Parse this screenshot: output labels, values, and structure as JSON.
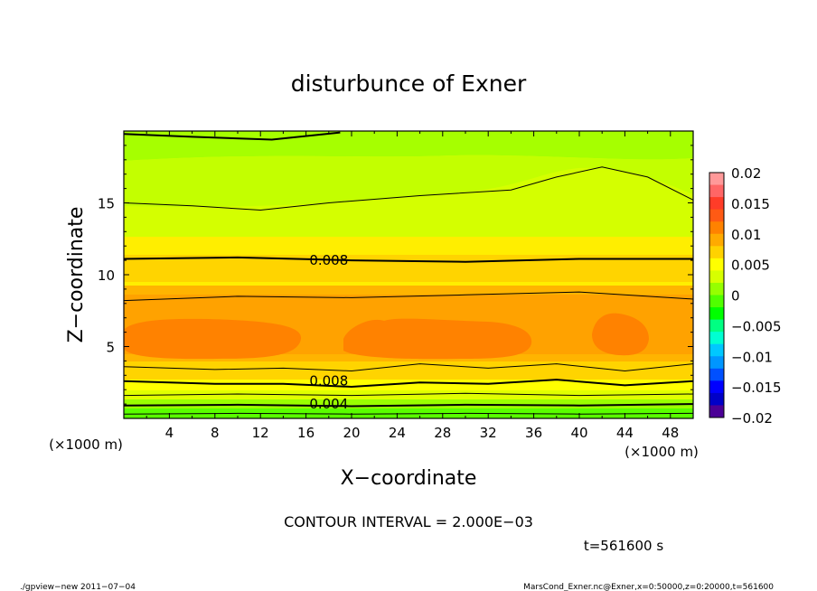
{
  "chart_data": {
    "type": "heatmap",
    "title": "disturbunce of Exner",
    "xlabel": "X−coordinate",
    "ylabel": "Z−coordinate",
    "x_unit_left": "(×1000 m)",
    "x_unit_right": "(×1000 m)",
    "xlim": [
      0,
      50
    ],
    "ylim": [
      0,
      20
    ],
    "x_ticks": [
      4,
      8,
      12,
      16,
      20,
      24,
      28,
      32,
      36,
      40,
      44,
      48
    ],
    "y_ticks": [
      5,
      10,
      15
    ],
    "contour_interval_text": "CONTOUR INTERVAL = 2.000E−03",
    "time_text": "t=561600 s",
    "contour_labels": [
      {
        "text": "0.008",
        "x": 18,
        "z": 11.0
      },
      {
        "text": "0.008",
        "x": 18,
        "z": 2.6
      },
      {
        "text": "0.004",
        "x": 18,
        "z": 1.0
      }
    ],
    "contour_lines": [
      {
        "level": 0.002,
        "points": [
          [
            0,
            0.3
          ],
          [
            10,
            0.35
          ],
          [
            20,
            0.3
          ],
          [
            30,
            0.35
          ],
          [
            40,
            0.3
          ],
          [
            50,
            0.35
          ]
        ]
      },
      {
        "level": 0.004,
        "points": [
          [
            0,
            0.9
          ],
          [
            10,
            0.95
          ],
          [
            20,
            0.85
          ],
          [
            30,
            0.95
          ],
          [
            40,
            0.9
          ],
          [
            50,
            1.0
          ]
        ]
      },
      {
        "level": 0.006,
        "points": [
          [
            0,
            1.6
          ],
          [
            10,
            1.7
          ],
          [
            20,
            1.6
          ],
          [
            30,
            1.75
          ],
          [
            40,
            1.6
          ],
          [
            50,
            1.7
          ]
        ]
      },
      {
        "level": 0.008,
        "points": [
          [
            0,
            2.6
          ],
          [
            8,
            2.4
          ],
          [
            14,
            2.4
          ],
          [
            20,
            2.2
          ],
          [
            26,
            2.5
          ],
          [
            32,
            2.4
          ],
          [
            38,
            2.7
          ],
          [
            44,
            2.3
          ],
          [
            50,
            2.6
          ]
        ]
      },
      {
        "level": 0.01,
        "points": [
          [
            0,
            3.6
          ],
          [
            8,
            3.4
          ],
          [
            14,
            3.5
          ],
          [
            20,
            3.3
          ],
          [
            26,
            3.8
          ],
          [
            32,
            3.5
          ],
          [
            38,
            3.8
          ],
          [
            44,
            3.3
          ],
          [
            50,
            3.8
          ]
        ]
      },
      {
        "level": 0.01,
        "points": [
          [
            0,
            8.2
          ],
          [
            10,
            8.5
          ],
          [
            20,
            8.4
          ],
          [
            30,
            8.6
          ],
          [
            40,
            8.8
          ],
          [
            50,
            8.3
          ]
        ]
      },
      {
        "level": 0.008,
        "points": [
          [
            0,
            11.1
          ],
          [
            10,
            11.2
          ],
          [
            20,
            11.0
          ],
          [
            30,
            10.9
          ],
          [
            40,
            11.1
          ],
          [
            50,
            11.1
          ]
        ]
      },
      {
        "level": 0.006,
        "points": [
          [
            0,
            15.0
          ],
          [
            6,
            14.8
          ],
          [
            12,
            14.5
          ],
          [
            18,
            15.0
          ],
          [
            26,
            15.5
          ],
          [
            34,
            15.9
          ],
          [
            38,
            16.8
          ],
          [
            42,
            17.5
          ],
          [
            46,
            16.8
          ],
          [
            50,
            15.2
          ]
        ]
      },
      {
        "level": 0.004,
        "points": [
          [
            0,
            19.8
          ],
          [
            6,
            19.6
          ],
          [
            13,
            19.4
          ],
          [
            19,
            19.9
          ]
        ]
      }
    ],
    "colorbar": {
      "ticks": [
        0.02,
        0.015,
        0.01,
        0.005,
        0,
        -0.005,
        -0.01,
        -0.015,
        -0.02
      ],
      "tick_labels": [
        "0.02",
        "0.015",
        "0.01",
        "0.005",
        "0",
        "−0.005",
        "−0.01",
        "−0.015",
        "−0.02"
      ],
      "colors_top_to_bottom": [
        "#ff9999",
        "#ff6666",
        "#ff3c28",
        "#ff5a14",
        "#ff8200",
        "#ffaa00",
        "#ffd200",
        "#ffff00",
        "#d7ff00",
        "#96ff00",
        "#50ff00",
        "#00ff00",
        "#00ff82",
        "#00ffd2",
        "#00c8ff",
        "#0096ff",
        "#0050ff",
        "#0000ff",
        "#0000c8",
        "#4b0096"
      ]
    }
  },
  "footer": {
    "left": "./gpview−new   2011−07−04",
    "right": "MarsCond_Exner.nc@Exner,x=0:50000,z=0:20000,t=561600"
  }
}
